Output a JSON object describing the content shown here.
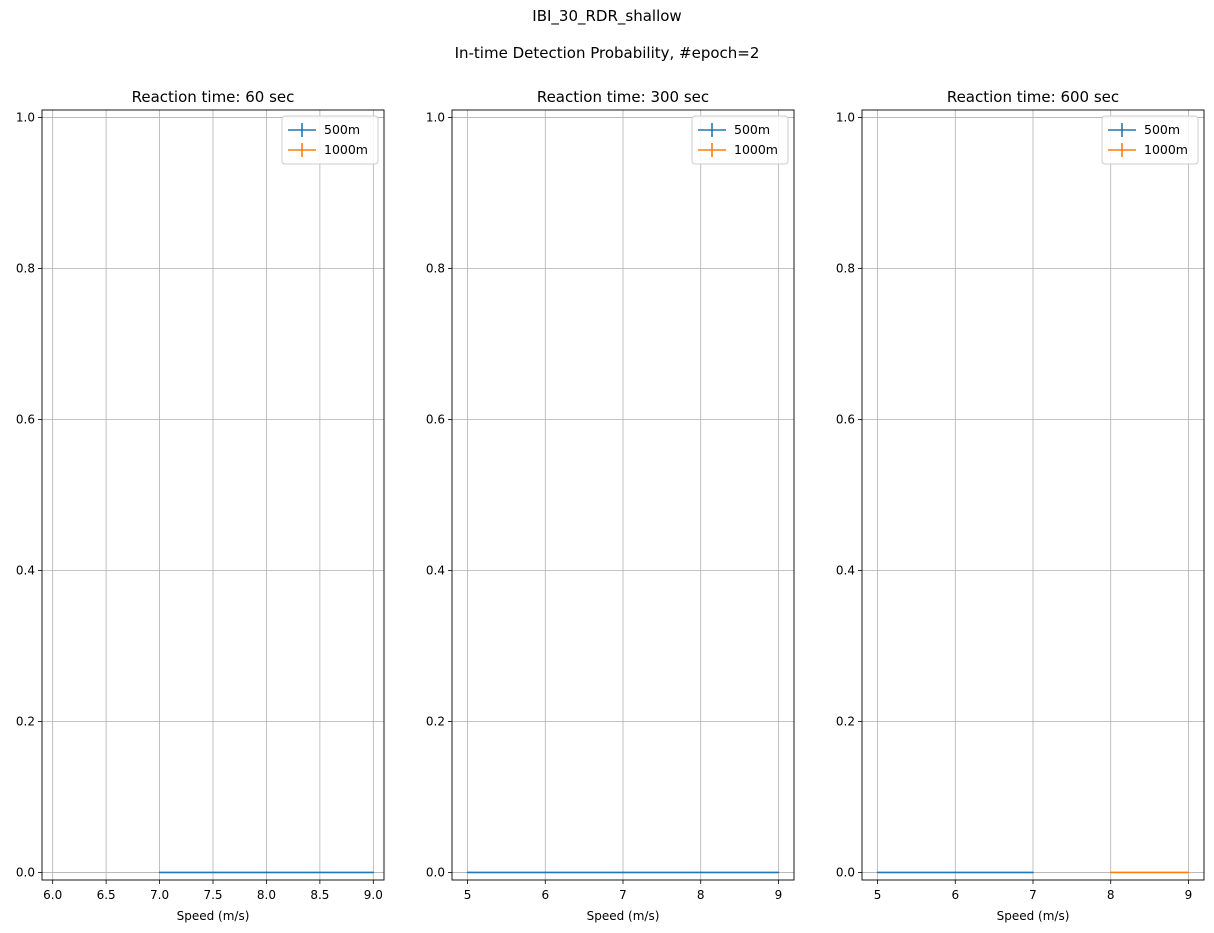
{
  "figure": {
    "suptitle_line1": "IBI_30_RDR_shallow",
    "suptitle_line2": "In-time Detection Probability, #epoch=2"
  },
  "colors": {
    "series_500m": "#1f77b4",
    "series_1000m": "#ff7f0e",
    "grid": "#b0b0b0"
  },
  "chart_data": [
    {
      "type": "line",
      "title": "Reaction time: 60 sec",
      "xlabel": "Speed (m/s)",
      "ylabel": "",
      "xlim": [
        5.9,
        9.1
      ],
      "ylim": [
        -0.01,
        1.01
      ],
      "xticks": [
        6.0,
        6.5,
        7.0,
        7.5,
        8.0,
        8.5,
        9.0
      ],
      "xtick_labels": [
        "6.0",
        "6.5",
        "7.0",
        "7.5",
        "8.0",
        "8.5",
        "9.0"
      ],
      "yticks": [
        0.0,
        0.2,
        0.4,
        0.6,
        0.8,
        1.0
      ],
      "ytick_labels": [
        "0.0",
        "0.2",
        "0.4",
        "0.6",
        "0.8",
        "1.0"
      ],
      "grid": true,
      "legend": "top-right",
      "series": [
        {
          "name": "500m",
          "x": [
            7,
            8,
            9
          ],
          "y": [
            0,
            0,
            0
          ]
        },
        {
          "name": "1000m",
          "x": [],
          "y": []
        }
      ]
    },
    {
      "type": "line",
      "title": "Reaction time: 300 sec",
      "xlabel": "Speed (m/s)",
      "ylabel": "",
      "xlim": [
        4.8,
        9.2
      ],
      "ylim": [
        -0.01,
        1.01
      ],
      "xticks": [
        5,
        6,
        7,
        8,
        9
      ],
      "xtick_labels": [
        "5",
        "6",
        "7",
        "8",
        "9"
      ],
      "yticks": [
        0.0,
        0.2,
        0.4,
        0.6,
        0.8,
        1.0
      ],
      "ytick_labels": [
        "0.0",
        "0.2",
        "0.4",
        "0.6",
        "0.8",
        "1.0"
      ],
      "grid": true,
      "legend": "top-right",
      "series": [
        {
          "name": "500m",
          "x": [
            5,
            6,
            7,
            8,
            9
          ],
          "y": [
            0,
            0,
            0,
            0,
            0
          ]
        },
        {
          "name": "1000m",
          "x": [],
          "y": []
        }
      ]
    },
    {
      "type": "line",
      "title": "Reaction time: 600 sec",
      "xlabel": "Speed (m/s)",
      "ylabel": "",
      "xlim": [
        4.8,
        9.2
      ],
      "ylim": [
        -0.01,
        1.01
      ],
      "xticks": [
        5,
        6,
        7,
        8,
        9
      ],
      "xtick_labels": [
        "5",
        "6",
        "7",
        "8",
        "9"
      ],
      "yticks": [
        0.0,
        0.2,
        0.4,
        0.6,
        0.8,
        1.0
      ],
      "ytick_labels": [
        "0.0",
        "0.2",
        "0.4",
        "0.6",
        "0.8",
        "1.0"
      ],
      "grid": true,
      "legend": "top-right",
      "series": [
        {
          "name": "500m",
          "x": [
            5,
            6,
            7
          ],
          "y": [
            0,
            0,
            0
          ]
        },
        {
          "name": "1000m",
          "x": [
            8,
            9
          ],
          "y": [
            0,
            0
          ]
        }
      ]
    }
  ]
}
